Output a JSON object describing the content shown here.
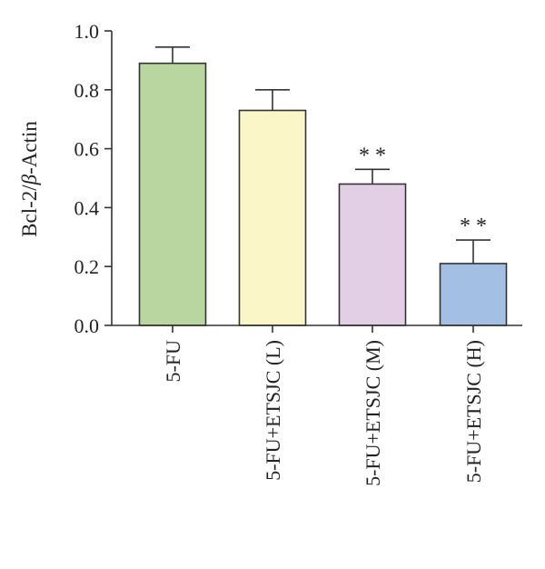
{
  "chart_data": {
    "type": "bar",
    "title": "",
    "xlabel": "",
    "ylabel": "Bcl-2/β-Actin",
    "ylabel_parts": [
      "Bcl-2/",
      "β",
      "-Actin"
    ],
    "ylim": [
      0.0,
      1.0
    ],
    "yticks": [
      0.0,
      0.2,
      0.4,
      0.6,
      0.8,
      1.0
    ],
    "ytick_labels": [
      "0.0",
      "0.2",
      "0.4",
      "0.6",
      "0.8",
      "1.0"
    ],
    "categories": [
      "5-FU",
      "5-FU+ETSJC (L)",
      "5-FU+ETSJC (M)",
      "5-FU+ETSJC (H)"
    ],
    "values": [
      0.89,
      0.73,
      0.48,
      0.21
    ],
    "errors": [
      0.055,
      0.07,
      0.05,
      0.08
    ],
    "significance": [
      "",
      "",
      "**",
      "**"
    ],
    "bar_colors": [
      "#b9d6a0",
      "#fbf6c8",
      "#e2cfe6",
      "#a3bfe3"
    ],
    "grid": false,
    "legend": "none"
  }
}
